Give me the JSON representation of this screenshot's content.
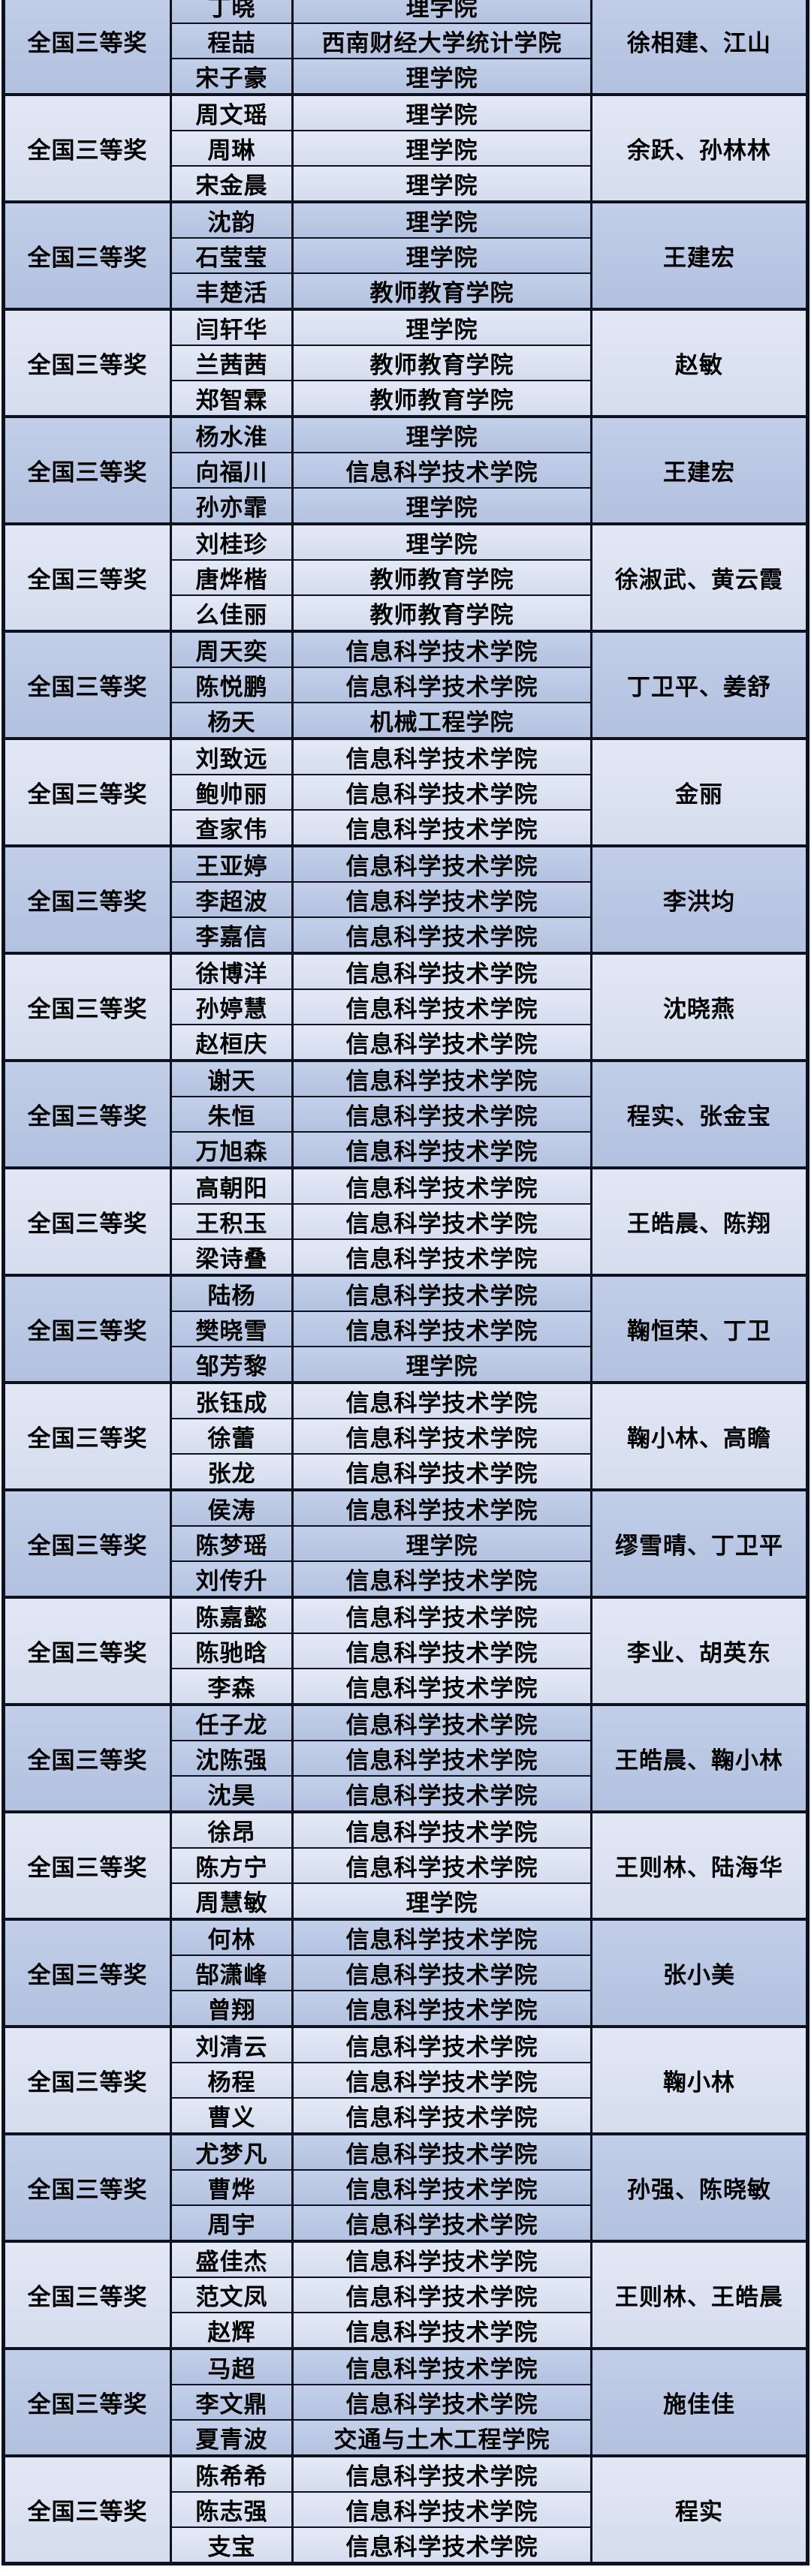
{
  "table": {
    "colors": {
      "group_shade_dark": "#b7c4e1",
      "group_shade_light": "#dbe2f0",
      "border": "#0d1220",
      "text": "#000000",
      "page_background": "#ffffff"
    },
    "groups": [
      {
        "award": "全国三等奖",
        "advisors": "徐相建、江山",
        "members": [
          {
            "name": "丁晓",
            "college": "理学院"
          },
          {
            "name": "程喆",
            "college": "西南财经大学统计学院"
          },
          {
            "name": "宋子豪",
            "college": "理学院"
          }
        ]
      },
      {
        "award": "全国三等奖",
        "advisors": "余跃、孙林林",
        "members": [
          {
            "name": "周文瑶",
            "college": "理学院"
          },
          {
            "name": "周琳",
            "college": "理学院"
          },
          {
            "name": "宋金晨",
            "college": "理学院"
          }
        ]
      },
      {
        "award": "全国三等奖",
        "advisors": "王建宏",
        "members": [
          {
            "name": "沈韵",
            "college": "理学院"
          },
          {
            "name": "石莹莹",
            "college": "理学院"
          },
          {
            "name": "丰楚活",
            "college": "教师教育学院"
          }
        ]
      },
      {
        "award": "全国三等奖",
        "advisors": "赵敏",
        "members": [
          {
            "name": "闫轩华",
            "college": "理学院"
          },
          {
            "name": "兰茜茜",
            "college": "教师教育学院"
          },
          {
            "name": "郑智霖",
            "college": "教师教育学院"
          }
        ]
      },
      {
        "award": "全国三等奖",
        "advisors": "王建宏",
        "members": [
          {
            "name": "杨水淮",
            "college": "理学院"
          },
          {
            "name": "向福川",
            "college": "信息科学技术学院"
          },
          {
            "name": "孙亦霏",
            "college": "理学院"
          }
        ]
      },
      {
        "award": "全国三等奖",
        "advisors": "徐淑武、黄云霞",
        "members": [
          {
            "name": "刘桂珍",
            "college": "理学院"
          },
          {
            "name": "唐烨楷",
            "college": "教师教育学院"
          },
          {
            "name": "么佳丽",
            "college": "教师教育学院"
          }
        ]
      },
      {
        "award": "全国三等奖",
        "advisors": "丁卫平、姜舒",
        "members": [
          {
            "name": "周天奕",
            "college": "信息科学技术学院"
          },
          {
            "name": "陈悦鹏",
            "college": "信息科学技术学院"
          },
          {
            "name": "杨天",
            "college": "机械工程学院"
          }
        ]
      },
      {
        "award": "全国三等奖",
        "advisors": "金丽",
        "members": [
          {
            "name": "刘致远",
            "college": "信息科学技术学院"
          },
          {
            "name": "鲍帅丽",
            "college": "信息科学技术学院"
          },
          {
            "name": "查家伟",
            "college": "信息科学技术学院"
          }
        ]
      },
      {
        "award": "全国三等奖",
        "advisors": "李洪均",
        "members": [
          {
            "name": "王亚婷",
            "college": "信息科学技术学院"
          },
          {
            "name": "李超波",
            "college": "信息科学技术学院"
          },
          {
            "name": "李嘉信",
            "college": "信息科学技术学院"
          }
        ]
      },
      {
        "award": "全国三等奖",
        "advisors": "沈晓燕",
        "members": [
          {
            "name": "徐博洋",
            "college": "信息科学技术学院"
          },
          {
            "name": "孙婷慧",
            "college": "信息科学技术学院"
          },
          {
            "name": "赵桓庆",
            "college": "信息科学技术学院"
          }
        ]
      },
      {
        "award": "全国三等奖",
        "advisors": "程实、张金宝",
        "members": [
          {
            "name": "谢天",
            "college": "信息科学技术学院"
          },
          {
            "name": "朱恒",
            "college": "信息科学技术学院"
          },
          {
            "name": "万旭森",
            "college": "信息科学技术学院"
          }
        ]
      },
      {
        "award": "全国三等奖",
        "advisors": "王皓晨、陈翔",
        "members": [
          {
            "name": "高朝阳",
            "college": "信息科学技术学院"
          },
          {
            "name": "王积玉",
            "college": "信息科学技术学院"
          },
          {
            "name": "梁诗叠",
            "college": "信息科学技术学院"
          }
        ]
      },
      {
        "award": "全国三等奖",
        "advisors": "鞠恒荣、丁卫",
        "members": [
          {
            "name": "陆杨",
            "college": "信息科学技术学院"
          },
          {
            "name": "樊晓雪",
            "college": "信息科学技术学院"
          },
          {
            "name": "邹芳黎",
            "college": "理学院"
          }
        ]
      },
      {
        "award": "全国三等奖",
        "advisors": "鞠小林、高瞻",
        "members": [
          {
            "name": "张钰成",
            "college": "信息科学技术学院"
          },
          {
            "name": "徐蕾",
            "college": "信息科学技术学院"
          },
          {
            "name": "张龙",
            "college": "信息科学技术学院"
          }
        ]
      },
      {
        "award": "全国三等奖",
        "advisors": "缪雪晴、丁卫平",
        "members": [
          {
            "name": "侯涛",
            "college": "信息科学技术学院"
          },
          {
            "name": "陈梦瑶",
            "college": "理学院"
          },
          {
            "name": "刘传升",
            "college": "信息科学技术学院"
          }
        ]
      },
      {
        "award": "全国三等奖",
        "advisors": "李业、胡英东",
        "members": [
          {
            "name": "陈嘉懿",
            "college": "信息科学技术学院"
          },
          {
            "name": "陈驰晗",
            "college": "信息科学技术学院"
          },
          {
            "name": "李森",
            "college": "信息科学技术学院"
          }
        ]
      },
      {
        "award": "全国三等奖",
        "advisors": "王皓晨、鞠小林",
        "members": [
          {
            "name": "任子龙",
            "college": "信息科学技术学院"
          },
          {
            "name": "沈陈强",
            "college": "信息科学技术学院"
          },
          {
            "name": "沈昊",
            "college": "信息科学技术学院"
          }
        ]
      },
      {
        "award": "全国三等奖",
        "advisors": "王则林、陆海华",
        "members": [
          {
            "name": "徐昂",
            "college": "信息科学技术学院"
          },
          {
            "name": "陈方宁",
            "college": "信息科学技术学院"
          },
          {
            "name": "周慧敏",
            "college": "理学院"
          }
        ]
      },
      {
        "award": "全国三等奖",
        "advisors": "张小美",
        "members": [
          {
            "name": "何林",
            "college": "信息科学技术学院"
          },
          {
            "name": "郜潇峰",
            "college": "信息科学技术学院"
          },
          {
            "name": "曾翔",
            "college": "信息科学技术学院"
          }
        ]
      },
      {
        "award": "全国三等奖",
        "advisors": "鞠小林",
        "members": [
          {
            "name": "刘清云",
            "college": "信息科学技术学院"
          },
          {
            "name": "杨程",
            "college": "信息科学技术学院"
          },
          {
            "name": "曹义",
            "college": "信息科学技术学院"
          }
        ]
      },
      {
        "award": "全国三等奖",
        "advisors": "孙强、陈晓敏",
        "members": [
          {
            "name": "尤梦凡",
            "college": "信息科学技术学院"
          },
          {
            "name": "曹烨",
            "college": "信息科学技术学院"
          },
          {
            "name": "周宇",
            "college": "信息科学技术学院"
          }
        ]
      },
      {
        "award": "全国三等奖",
        "advisors": "王则林、王皓晨",
        "members": [
          {
            "name": "盛佳杰",
            "college": "信息科学技术学院"
          },
          {
            "name": "范文凤",
            "college": "信息科学技术学院"
          },
          {
            "name": "赵辉",
            "college": "信息科学技术学院"
          }
        ]
      },
      {
        "award": "全国三等奖",
        "advisors": "施佳佳",
        "members": [
          {
            "name": "马超",
            "college": "信息科学技术学院"
          },
          {
            "name": "李文鼎",
            "college": "信息科学技术学院"
          },
          {
            "name": "夏青波",
            "college": "交通与土木工程学院"
          }
        ]
      },
      {
        "award": "全国三等奖",
        "advisors": "程实",
        "members": [
          {
            "name": "陈希希",
            "college": "信息科学技术学院"
          },
          {
            "name": "陈志强",
            "college": "信息科学技术学院"
          },
          {
            "name": "支宝",
            "college": "信息科学技术学院"
          }
        ]
      }
    ]
  }
}
